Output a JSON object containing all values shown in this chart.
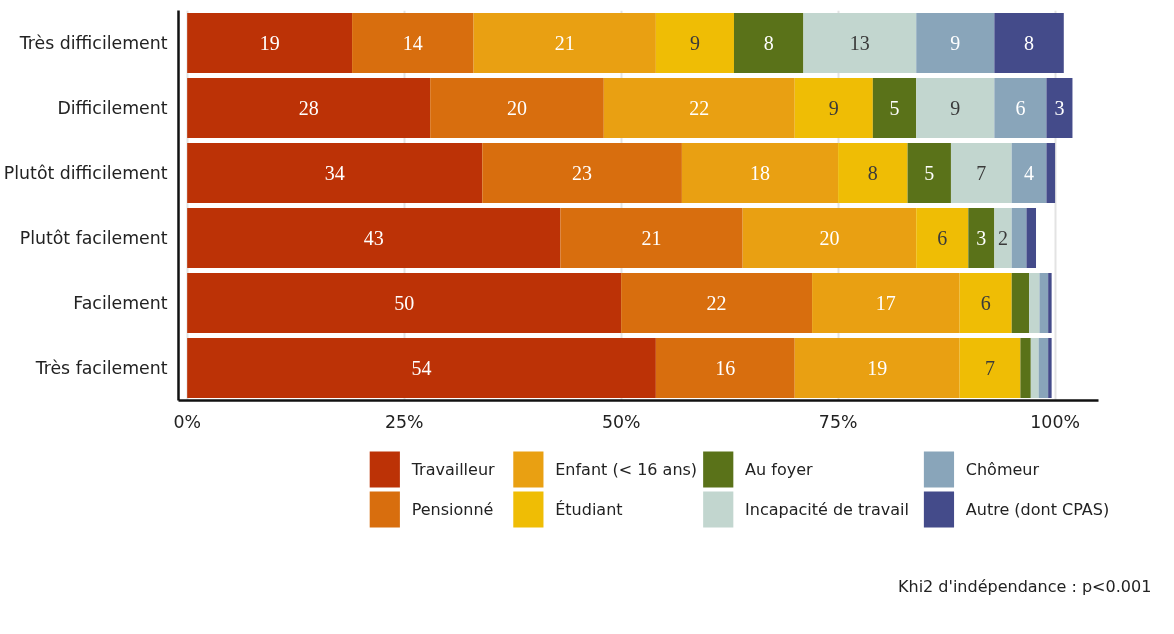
{
  "chart_data": {
    "type": "bar",
    "orientation": "horizontal",
    "stacked": true,
    "categories": [
      "Très difficilement",
      "Difficilement",
      "Plutôt difficilement",
      "Plutôt facilement",
      "Facilement",
      "Très facilement"
    ],
    "series": [
      {
        "name": "Travailleur",
        "color": "#bc3206",
        "values": [
          19,
          28,
          34,
          43,
          50,
          54
        ],
        "value_labels": [
          "19",
          "28",
          "34",
          "43",
          "50",
          "54"
        ]
      },
      {
        "name": "Pensionné",
        "color": "#d86e0e",
        "values": [
          14,
          20,
          23,
          21,
          22,
          16
        ],
        "value_labels": [
          "14",
          "20",
          "23",
          "21",
          "22",
          "16"
        ]
      },
      {
        "name": "Enfant (< 16 ans)",
        "color": "#e9a012",
        "values": [
          21,
          22,
          18,
          20,
          17,
          19
        ],
        "value_labels": [
          "21",
          "22",
          "18",
          "20",
          "17",
          "19"
        ]
      },
      {
        "name": "Étudiant",
        "color": "#efbd05",
        "values": [
          9,
          9,
          8,
          6,
          6,
          7
        ],
        "value_labels": [
          "9",
          "9",
          "8",
          "6",
          "6",
          "7"
        ]
      },
      {
        "name": "Au foyer",
        "color": "#5a7219",
        "values": [
          8,
          5,
          5,
          3,
          2,
          1.2
        ],
        "value_labels": [
          "8",
          "5",
          "5",
          "3",
          null,
          null
        ]
      },
      {
        "name": "Incapacité de travail",
        "color": "#c2d6cf",
        "values": [
          13,
          9,
          7,
          2,
          1.2,
          0.9
        ],
        "value_labels": [
          "13",
          "9",
          "7",
          "2",
          null,
          null
        ]
      },
      {
        "name": "Chômeur",
        "color": "#89a5ba",
        "values": [
          9,
          6,
          4,
          1.7,
          1,
          1.1
        ],
        "value_labels": [
          "9",
          "6",
          "4",
          null,
          null,
          null
        ]
      },
      {
        "name": "Autre (dont CPAS)",
        "color": "#444b8a",
        "values": [
          8,
          3,
          1,
          1.1,
          0.4,
          0.4
        ],
        "value_labels": [
          "8",
          "3",
          null,
          null,
          null,
          null
        ]
      }
    ],
    "xlim": [
      -1,
      105
    ],
    "xticks": [
      {
        "value": 0,
        "label": "0%"
      },
      {
        "value": 25,
        "label": "25%"
      },
      {
        "value": 50,
        "label": "50%"
      },
      {
        "value": 75,
        "label": "75%"
      },
      {
        "value": 100,
        "label": "100%"
      }
    ],
    "grid": "x",
    "legend": "bottom",
    "annotations": [
      "Khi2 d'indépendance : p<0.001"
    ]
  }
}
